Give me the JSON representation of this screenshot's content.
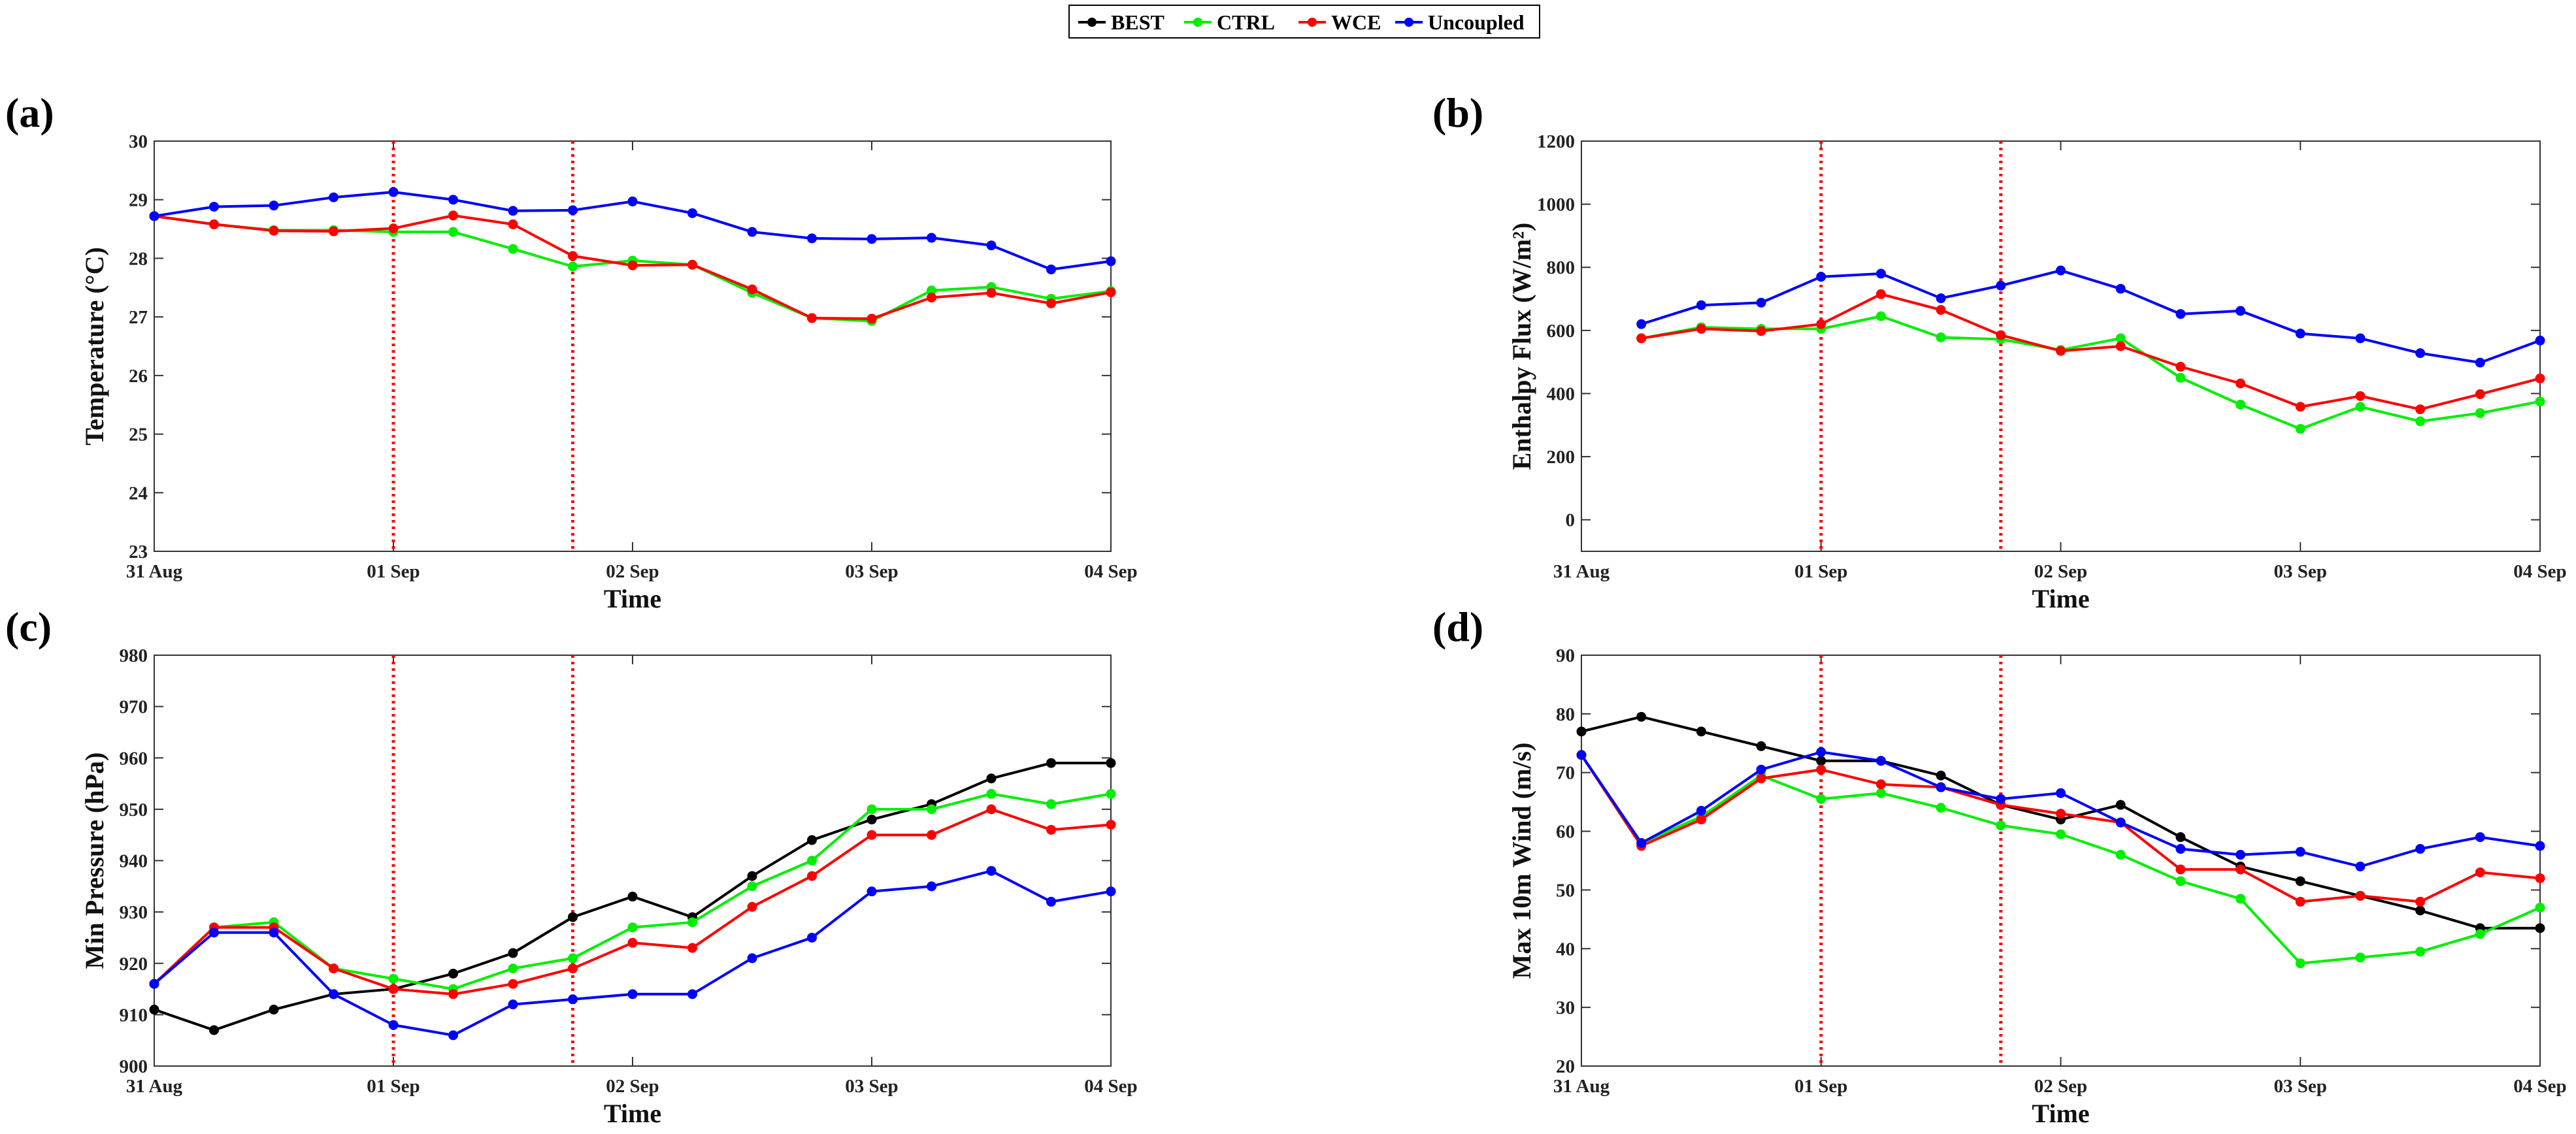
{
  "legend": {
    "items": [
      {
        "name": "BEST",
        "color": "#000000"
      },
      {
        "name": "CTRL",
        "color": "#00ee00"
      },
      {
        "name": "WCE",
        "color": "#ff0000"
      },
      {
        "name": "Uncoupled",
        "color": "#0000ff"
      }
    ]
  },
  "chart_data": [
    {
      "panel": "(a)",
      "type": "line",
      "xlabel": "Time",
      "ylabel": "Temperature (°C)",
      "ylim": [
        23,
        30
      ],
      "yticks": [
        23,
        24,
        25,
        26,
        27,
        28,
        29,
        30
      ],
      "xticks": [
        "31 Aug",
        "01 Sep",
        "02 Sep",
        "03 Sep",
        "04 Sep"
      ],
      "xlim": [
        0,
        4
      ],
      "vlines": [
        1.0,
        1.75
      ],
      "x": [
        0,
        0.25,
        0.5,
        0.75,
        1.0,
        1.25,
        1.5,
        1.75,
        2.0,
        2.25,
        2.5,
        2.75,
        3.0,
        3.25,
        3.5,
        3.75,
        4.0
      ],
      "series": [
        {
          "name": "CTRL",
          "values": [
            28.72,
            28.58,
            28.48,
            28.48,
            28.45,
            28.45,
            28.16,
            27.86,
            27.96,
            27.89,
            27.41,
            26.98,
            26.93,
            27.45,
            27.51,
            27.31,
            27.44
          ]
        },
        {
          "name": "WCE",
          "values": [
            28.72,
            28.58,
            28.47,
            28.46,
            28.51,
            28.73,
            28.58,
            28.04,
            27.88,
            27.89,
            27.47,
            26.98,
            26.97,
            27.33,
            27.41,
            27.23,
            27.42
          ]
        },
        {
          "name": "Uncoupled",
          "values": [
            28.72,
            28.88,
            28.9,
            29.04,
            29.13,
            29.0,
            28.81,
            28.82,
            28.97,
            28.77,
            28.45,
            28.34,
            28.33,
            28.35,
            28.22,
            27.81,
            27.95
          ]
        }
      ]
    },
    {
      "panel": "(b)",
      "type": "line",
      "xlabel": "Time",
      "ylabel": "Enthalpy Flux (W/m²)",
      "ylim": [
        -100,
        1200
      ],
      "yticks": [
        0,
        200,
        400,
        600,
        800,
        1000,
        1200
      ],
      "xticks": [
        "31 Aug",
        "01 Sep",
        "02 Sep",
        "03 Sep",
        "04 Sep"
      ],
      "xlim": [
        0,
        4
      ],
      "vlines": [
        1.0,
        1.75
      ],
      "x": [
        0.25,
        0.5,
        0.75,
        1.0,
        1.25,
        1.5,
        1.75,
        2.0,
        2.25,
        2.5,
        2.75,
        3.0,
        3.25,
        3.5,
        3.75,
        4.0
      ],
      "series": [
        {
          "name": "CTRL",
          "values": [
            575,
            610,
            605,
            605,
            645,
            578,
            572,
            538,
            575,
            450,
            365,
            288,
            358,
            312,
            338,
            375
          ]
        },
        {
          "name": "WCE",
          "values": [
            575,
            605,
            598,
            620,
            715,
            665,
            585,
            535,
            550,
            485,
            432,
            358,
            392,
            350,
            398,
            448
          ]
        },
        {
          "name": "Uncoupled",
          "values": [
            620,
            680,
            688,
            770,
            780,
            702,
            742,
            790,
            732,
            652,
            662,
            590,
            575,
            528,
            498,
            568
          ]
        }
      ]
    },
    {
      "panel": "(c)",
      "type": "line",
      "xlabel": "Time",
      "ylabel": "Min Pressure (hPa)",
      "ylim": [
        900,
        980
      ],
      "yticks": [
        900,
        910,
        920,
        930,
        940,
        950,
        960,
        970,
        980
      ],
      "xticks": [
        "31 Aug",
        "01 Sep",
        "02 Sep",
        "03 Sep",
        "04 Sep"
      ],
      "xlim": [
        0,
        4
      ],
      "vlines": [
        1.0,
        1.75
      ],
      "x": [
        0,
        0.25,
        0.5,
        0.75,
        1.0,
        1.25,
        1.5,
        1.75,
        2.0,
        2.25,
        2.5,
        2.75,
        3.0,
        3.25,
        3.5,
        3.75,
        4.0
      ],
      "series": [
        {
          "name": "BEST",
          "values": [
            911,
            907,
            911,
            914,
            915,
            918,
            922,
            929,
            933,
            929,
            937,
            944,
            948,
            951,
            956,
            959,
            959
          ]
        },
        {
          "name": "CTRL",
          "values": [
            916,
            927,
            928,
            919,
            917,
            915,
            919,
            921,
            927,
            928,
            935,
            940,
            950,
            950,
            953,
            951,
            953
          ]
        },
        {
          "name": "WCE",
          "values": [
            916,
            927,
            927,
            919,
            915,
            914,
            916,
            919,
            924,
            923,
            931,
            937,
            945,
            945,
            950,
            946,
            947
          ]
        },
        {
          "name": "Uncoupled",
          "values": [
            916,
            926,
            926,
            914,
            908,
            906,
            912,
            913,
            914,
            914,
            921,
            925,
            934,
            935,
            938,
            932,
            934
          ]
        }
      ]
    },
    {
      "panel": "(d)",
      "type": "line",
      "xlabel": "Time",
      "ylabel": "Max 10m Wind (m/s)",
      "ylim": [
        20,
        90
      ],
      "yticks": [
        20,
        30,
        40,
        50,
        60,
        70,
        80,
        90
      ],
      "xticks": [
        "31 Aug",
        "01 Sep",
        "02 Sep",
        "03 Sep",
        "04 Sep"
      ],
      "xlim": [
        0,
        4
      ],
      "vlines": [
        1.0,
        1.75
      ],
      "x": [
        0,
        0.25,
        0.5,
        0.75,
        1.0,
        1.25,
        1.5,
        1.75,
        2.0,
        2.25,
        2.5,
        2.75,
        3.0,
        3.25,
        3.5,
        3.75,
        4.0
      ],
      "series": [
        {
          "name": "BEST",
          "values": [
            77,
            79.5,
            77,
            74.5,
            72,
            72,
            69.5,
            64.5,
            62,
            64.5,
            59,
            54,
            51.5,
            49,
            46.5,
            43.5,
            43.5
          ]
        },
        {
          "name": "CTRL",
          "values": [
            73,
            58,
            62.5,
            69.5,
            65.5,
            66.5,
            64,
            61,
            59.5,
            56,
            51.5,
            48.5,
            37.5,
            38.5,
            39.5,
            42.5,
            47
          ]
        },
        {
          "name": "WCE",
          "values": [
            73,
            57.5,
            62,
            69,
            70.5,
            68,
            67.5,
            64.5,
            63,
            61.5,
            53.5,
            53.5,
            48,
            49,
            48,
            53,
            52
          ]
        },
        {
          "name": "Uncoupled",
          "values": [
            73,
            58,
            63.5,
            70.5,
            73.5,
            72,
            67.5,
            65.5,
            66.5,
            61.5,
            57,
            56,
            56.5,
            54,
            57,
            59,
            57.5
          ]
        }
      ]
    }
  ]
}
